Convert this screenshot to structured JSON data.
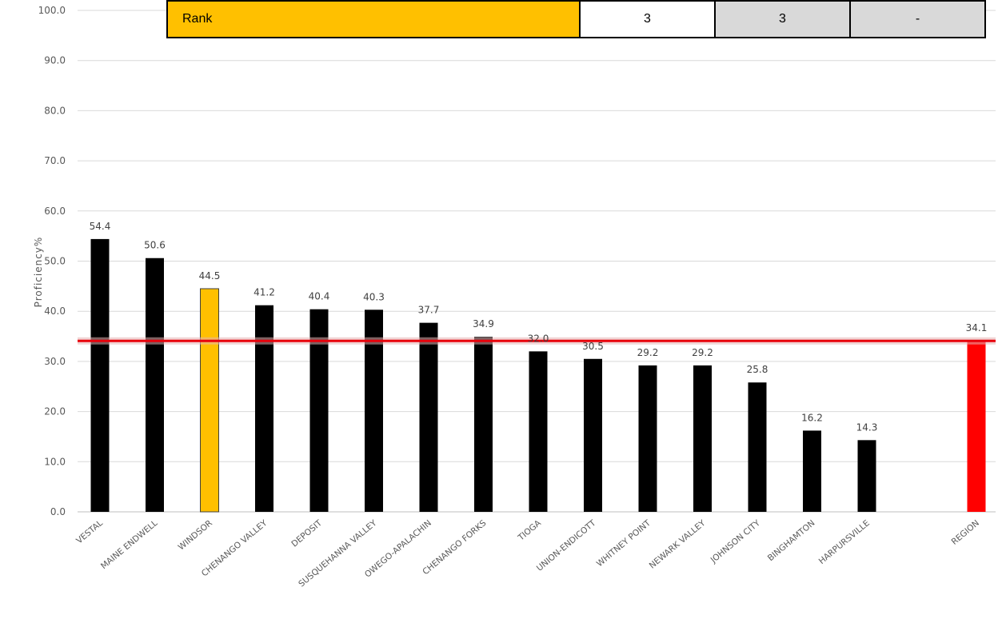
{
  "rank_table": {
    "label": "Rank",
    "values": [
      "3",
      "3",
      "-"
    ]
  },
  "colors": {
    "bar_default": "#000000",
    "bar_highlight": "#ffc000",
    "bar_region": "#ff0000",
    "reference_line": "#e8000b",
    "grid": "#d9d9d9"
  },
  "chart_data": {
    "type": "bar",
    "title": "",
    "xlabel": "",
    "ylabel": "Proficiency%",
    "ylim": [
      0,
      100
    ],
    "yticks": [
      "0.0",
      "10.0",
      "20.0",
      "30.0",
      "40.0",
      "50.0",
      "60.0",
      "70.0",
      "80.0",
      "90.0",
      "100.0"
    ],
    "grid": true,
    "categories": [
      "VESTAL",
      "MAINE ENDWELL",
      "WINDSOR",
      "CHENANGO VALLEY",
      "DEPOSIT",
      "SUSQUEHANNA VALLEY",
      "OWEGO-APALACHIN",
      "CHENANGO FORKS",
      "TIOGA",
      "UNION-ENDICOTT",
      "WHITNEY POINT",
      "NEWARK VALLEY",
      "JOHNSON CITY",
      "BINGHAMTON",
      "HARPURSVILLE",
      "",
      "REGION"
    ],
    "values": [
      54.4,
      50.6,
      44.5,
      41.2,
      40.4,
      40.3,
      37.7,
      34.9,
      32.0,
      30.5,
      29.2,
      29.2,
      25.8,
      16.2,
      14.3,
      null,
      34.1
    ],
    "data_labels": [
      "54.4",
      "50.6",
      "44.5",
      "41.2",
      "40.4",
      "40.3",
      "37.7",
      "34.9",
      "32.0",
      "30.5",
      "29.2",
      "29.2",
      "25.8",
      "16.2",
      "14.3",
      "",
      "34.1"
    ],
    "highlight_category": "WINDSOR",
    "region_category": "REGION",
    "reference_line_value": 34.1
  }
}
